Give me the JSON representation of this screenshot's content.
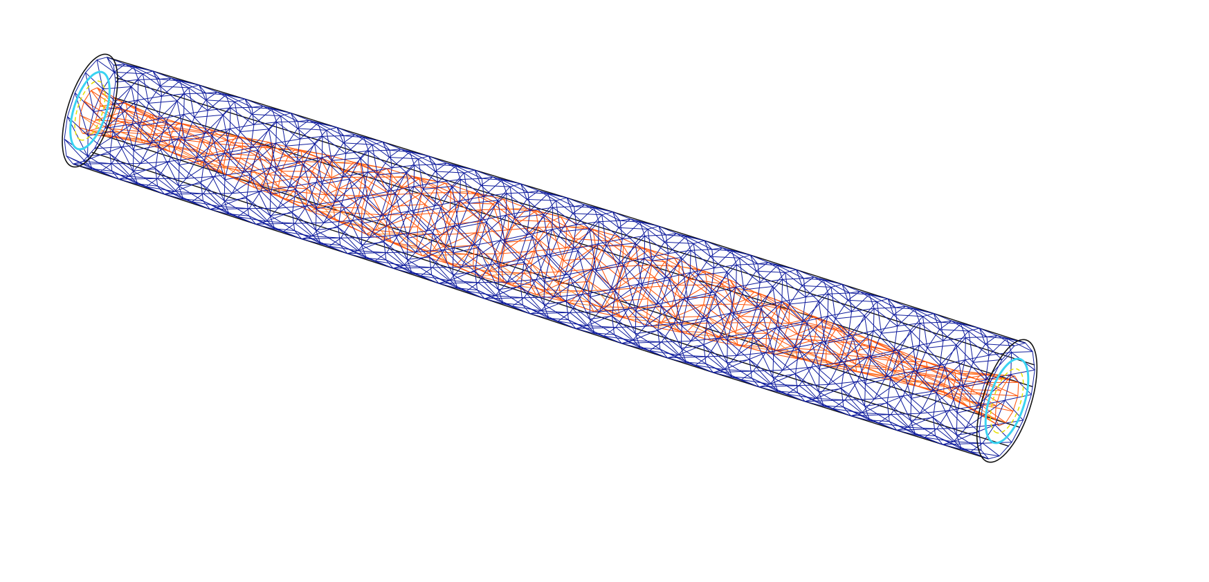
{
  "viewport": {
    "background": "#ffffff"
  },
  "model": {
    "outer_mesh": {
      "color": "#0d1a9c",
      "accent_color": "#35c8f0",
      "rings": 40,
      "segments": 14
    },
    "inner_core": {
      "color": "#ff5a12",
      "accent_color": "#ff8a33",
      "rings": 32,
      "segments": 10
    },
    "outline_color": "#111111",
    "end_cap_highlight": "#39d3f2",
    "end_cap_yellow": "#e6e000"
  }
}
